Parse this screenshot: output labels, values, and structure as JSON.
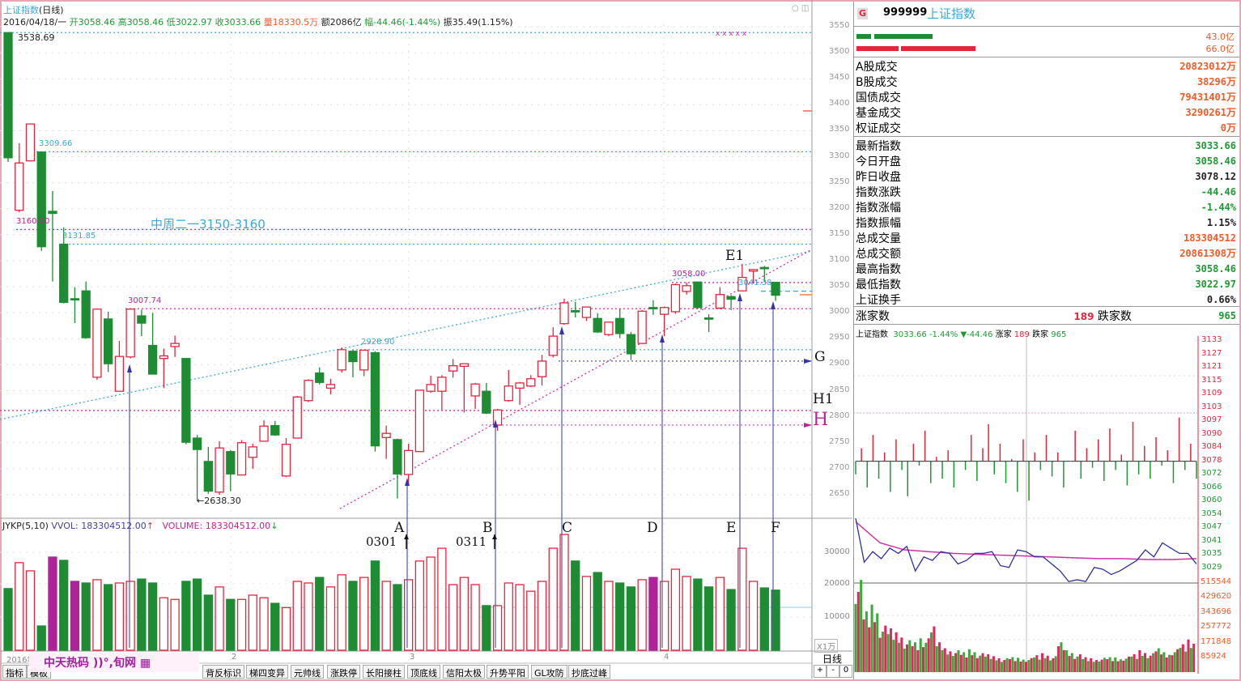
{
  "header": {
    "title": "上证指数",
    "period": "(日线)",
    "date": "2016/04/18/一",
    "open_label": "开",
    "open": "3058.46",
    "high_label": "高",
    "high": "3058.46",
    "low_label": "低",
    "low": "3022.97",
    "close_label": "收",
    "close": "3033.66",
    "vol_label": "量",
    "vol": "18330.5万",
    "amt_label": "额",
    "amt": "2086亿",
    "chg_label": "幅",
    "chg": "-44.46(-1.44%)",
    "amp_label": "振",
    "amp": "35.49(1.15%)"
  },
  "colors": {
    "up": "#e8243c",
    "down": "#1e8c32",
    "highlight": "#b0229a",
    "cyan": "#3aa8dc",
    "magenta": "#d030a8",
    "arrow": "#5555bb"
  },
  "price_labels": {
    "high": "3538.69",
    "l3309": "3309.66",
    "l3160": "3160.00",
    "l3131": "3131.85",
    "l3007": "3007.74",
    "l2928": "2928.90",
    "l3058": "3058.00",
    "l3041": "3041.38",
    "low": "←2638.30",
    "note": "中周二一3150-3160"
  },
  "annotations": {
    "A": "A",
    "B": "B",
    "C": "C",
    "D": "D",
    "E": "E",
    "F": "F",
    "E1": "E1",
    "G": "G",
    "H1": "H1",
    "H": "H",
    "d0301": "0301",
    "d0311": "0311"
  },
  "volume_header": {
    "name": "JYKP(5,10)",
    "vvol": "VVOL: 183304512.00",
    "vvol_arrow": "↑",
    "volume": "VOLUME: 183304512.00",
    "volume_arrow": "↓"
  },
  "volume_axis": {
    "t30000": "30000",
    "t20000": "20000",
    "t10000": "10000",
    "unit": "X1万"
  },
  "date_axis": {
    "year": "2016年",
    "m2": "2",
    "m3": "3",
    "m4": "4"
  },
  "period_label": "日线",
  "zoom_buttons": [
    "+",
    "-",
    "0"
  ],
  "toolbar": [
    "指标",
    "模板",
    "背反标识",
    "梯四变异",
    "元帅线",
    "涨跌停",
    "长阳接柱",
    "顶底线",
    "信阳太极",
    "升势平阳",
    "GL攻防",
    "抄底过峰"
  ],
  "watermark": "中天热码 ))°,旬网",
  "chart_data": {
    "type": "candlestick",
    "y_ticks": [
      3550,
      3500,
      3450,
      3400,
      3350,
      3300,
      3250,
      3200,
      3150,
      3100,
      3050,
      3000,
      2950,
      2900,
      2850,
      2800,
      2750,
      2700,
      2650
    ],
    "ylim": [
      2650,
      3550
    ],
    "candles": [
      [
        3538.69,
        3538.69,
        3290,
        3298
      ],
      [
        3197,
        3326,
        3193,
        3288
      ],
      [
        3292,
        3363,
        3292,
        3363
      ],
      [
        3309,
        3309.66,
        3119,
        3127
      ],
      [
        3195,
        3234,
        3060,
        3191
      ],
      [
        3131.85,
        3164,
        3018,
        3020
      ],
      [
        3027,
        3049,
        2980,
        3025
      ],
      [
        3042,
        3060,
        2950,
        2952
      ],
      [
        2876,
        3008,
        2871,
        3007
      ],
      [
        2988,
        3002,
        2886,
        2902
      ],
      [
        2849,
        2946,
        2849,
        2916
      ],
      [
        2915,
        3007.74,
        2912,
        3007
      ],
      [
        2994,
        3006,
        2955,
        2980
      ],
      [
        2937,
        3000,
        2882,
        2882
      ],
      [
        2912,
        2931,
        2855,
        2917
      ],
      [
        2935,
        2956,
        2915,
        2941
      ],
      [
        2912,
        2912,
        2747,
        2751
      ],
      [
        2759,
        2765,
        2638.3,
        2737
      ],
      [
        2714,
        2742,
        2652,
        2657
      ],
      [
        2655,
        2753,
        2650,
        2740
      ],
      [
        2733,
        2736,
        2657,
        2690
      ],
      [
        2688,
        2755,
        2688,
        2750
      ],
      [
        2722,
        2748,
        2700,
        2742
      ],
      [
        2753,
        2793,
        2752,
        2782
      ],
      [
        2783,
        2792,
        2763,
        2765
      ],
      [
        2686,
        2759,
        2684,
        2747
      ],
      [
        2759,
        2840,
        2759,
        2838
      ],
      [
        2831,
        2872,
        2828,
        2870
      ],
      [
        2884,
        2895,
        2862,
        2866
      ],
      [
        2855,
        2873,
        2843,
        2862
      ],
      [
        2890,
        2933,
        2885,
        2929
      ],
      [
        2926,
        2930,
        2876,
        2906
      ],
      [
        2890,
        2928.9,
        2878,
        2928
      ],
      [
        2923,
        2926,
        2733,
        2744
      ],
      [
        2760,
        2783,
        2719,
        2768
      ],
      [
        2756,
        2758,
        2643,
        2690
      ],
      [
        2689,
        2748,
        2670,
        2735
      ],
      [
        2733,
        2851,
        2733,
        2851
      ],
      [
        2849,
        2879,
        2846,
        2862
      ],
      [
        2849,
        2880,
        2813,
        2876
      ],
      [
        2888,
        2911,
        2875,
        2898
      ],
      [
        2897,
        2903,
        2808,
        2902
      ],
      [
        2840,
        2865,
        2815,
        2863
      ],
      [
        2849,
        2865,
        2805,
        2807
      ],
      [
        2784,
        2815,
        2773,
        2813
      ],
      [
        2831,
        2890,
        2829,
        2859
      ],
      [
        2855,
        2867,
        2823,
        2865
      ],
      [
        2859,
        2880,
        2857,
        2873
      ],
      [
        2877,
        2919,
        2860,
        2907
      ],
      [
        2918,
        2972,
        2914,
        2955
      ],
      [
        2979,
        3027,
        2977,
        3019
      ],
      [
        3004,
        3021,
        2991,
        3002
      ],
      [
        2991,
        3012,
        2984,
        3011
      ],
      [
        2989,
        2999,
        2961,
        2963
      ],
      [
        2958,
        2983,
        2955,
        2982
      ],
      [
        2989,
        3007,
        2951,
        2960
      ],
      [
        2958,
        2963,
        2909,
        2921
      ],
      [
        2941,
        3005,
        2940,
        3003
      ],
      [
        3010,
        3024,
        2996,
        3008
      ],
      [
        2997,
        3012,
        2955,
        3010
      ],
      [
        3002,
        3056,
        2998,
        3054
      ],
      [
        3041,
        3058,
        3035,
        3052
      ],
      [
        3059,
        3060,
        3008,
        3010
      ],
      [
        2990,
        2997,
        2963,
        2988
      ],
      [
        3009,
        3049,
        3007,
        3035
      ],
      [
        3031,
        3034,
        3005,
        3026
      ],
      [
        3042,
        3094,
        3041.38,
        3068
      ],
      [
        3080,
        3084,
        3056,
        3083
      ],
      [
        3087,
        3090,
        3059,
        3085
      ],
      [
        3058.46,
        3058.46,
        3022.97,
        3033.66
      ]
    ],
    "volume": [
      18800,
      26700,
      24200,
      7400,
      28400,
      27400,
      21000,
      20500,
      21500,
      20000,
      20500,
      21000,
      21700,
      20500,
      16000,
      15500,
      21000,
      21700,
      16800,
      19300,
      15500,
      15500,
      16800,
      16000,
      14300,
      13000,
      21000,
      20500,
      22200,
      19300,
      23000,
      21000,
      22200,
      27200,
      21000,
      20000,
      21500,
      27200,
      28400,
      31100,
      20000,
      22200,
      20000,
      13600,
      13600,
      20500,
      20000,
      18000,
      21000,
      31100,
      35300,
      27200,
      22500,
      23700,
      21000,
      20500,
      19300,
      21500,
      22200,
      21000,
      24700,
      22500,
      21700,
      19300,
      22200,
      18500,
      31100,
      21000,
      19000,
      18330.5
    ],
    "volume_highlight": [
      4,
      6,
      58
    ],
    "volume_ylim": [
      0,
      35000
    ]
  },
  "intraday": {
    "y_ticks": [
      "3133",
      "3127",
      "3121",
      "3115",
      "3109",
      "3103",
      "3097",
      "3090",
      "3084",
      "3078",
      "3072",
      "3066",
      "3060",
      "3054",
      "3047",
      "3041",
      "3035",
      "3029"
    ],
    "vol_ticks": [
      "515544",
      "429620",
      "343696",
      "257772",
      "171848",
      "85924"
    ],
    "prev_close": 3078.12,
    "breadth": [
      3072,
      3084,
      3066,
      3090,
      3070,
      3082,
      3064,
      3088,
      3074,
      3062,
      3086,
      3076,
      3092,
      3068,
      3080,
      3070,
      3083,
      3066,
      3078,
      3074,
      3090,
      3069,
      3084,
      3095,
      3072,
      3086,
      3068,
      3079,
      3064,
      3088,
      3060,
      3082,
      3074,
      3090,
      3071,
      3082,
      3066,
      3078,
      3092,
      3070,
      3084,
      3075,
      3088,
      3069,
      3093,
      3074,
      3081,
      3067,
      3096,
      3072,
      3085,
      3070,
      3089,
      3076,
      3083,
      3068,
      3098,
      3074,
      3086,
      3070
    ],
    "price": [
      3060,
      3035,
      3041,
      3037,
      3043,
      3040,
      3044,
      3030,
      3038,
      3036,
      3041,
      3040,
      3034,
      3036,
      3040,
      3040,
      3041,
      3033,
      3032,
      3042,
      3041,
      3038,
      3038,
      3034,
      3030,
      3024,
      3025,
      3024,
      3032,
      3031,
      3028,
      3030,
      3033,
      3036,
      3042,
      3038,
      3046,
      3043,
      3040,
      3040,
      3034
    ],
    "avg": [
      3058,
      3046,
      3042,
      3041,
      3040,
      3039.5,
      3039,
      3038.5,
      3038,
      3037.5,
      3037,
      3037,
      3036.5,
      3036.5,
      3037
    ],
    "volume": [
      464000,
      305000,
      340000,
      234000,
      220000,
      200000,
      160000,
      150000,
      170000,
      230000,
      150000,
      120000,
      110000,
      100000,
      115000,
      95000,
      90000,
      80000,
      70000,
      75000,
      72000,
      70000,
      85000,
      95000,
      80000,
      150000,
      110000,
      90000,
      75000,
      70000,
      72000,
      75000,
      74000,
      78000,
      90000,
      110000,
      95000,
      120000,
      100000,
      115000,
      140000,
      164000
    ]
  },
  "right_panel": {
    "badge": "G",
    "code": "999999",
    "name": "上证指数",
    "buy_amt": "43.0亿",
    "sell_amt": "66.0亿",
    "trade_rows": [
      [
        "A股成交",
        "20823012万"
      ],
      [
        "B股成交",
        "38296万"
      ],
      [
        "国债成交",
        "79431401万"
      ],
      [
        "基金成交",
        "3290261万"
      ],
      [
        "权证成交",
        "0万"
      ]
    ],
    "quote_rows": [
      [
        "最新指数",
        "3033.66",
        "g"
      ],
      [
        "今日开盘",
        "3058.46",
        "g"
      ],
      [
        "昨日收盘",
        "3078.12",
        "k"
      ],
      [
        "指数涨跌",
        "-44.46",
        "g"
      ],
      [
        "指数涨幅",
        "-1.44%",
        "g"
      ],
      [
        "指数振幅",
        "1.15%",
        "k"
      ],
      [
        "总成交量",
        "183304512",
        "o"
      ],
      [
        "总成交额",
        "20861308万",
        "o"
      ],
      [
        "最高指数",
        "3058.46",
        "g"
      ],
      [
        "最低指数",
        "3022.97",
        "g"
      ],
      [
        "上证换手",
        "0.66%",
        "k"
      ]
    ],
    "up_label": "涨家数",
    "up": "189",
    "down_label": "跌家数",
    "down": "965",
    "ticker": {
      "name": "上证指数",
      "price": "3033.66",
      "pct": "-1.44%",
      "chg": "▼-44.46",
      "up_label": "涨家",
      "up": "189",
      "down_label": "跌家",
      "down": "965"
    }
  }
}
